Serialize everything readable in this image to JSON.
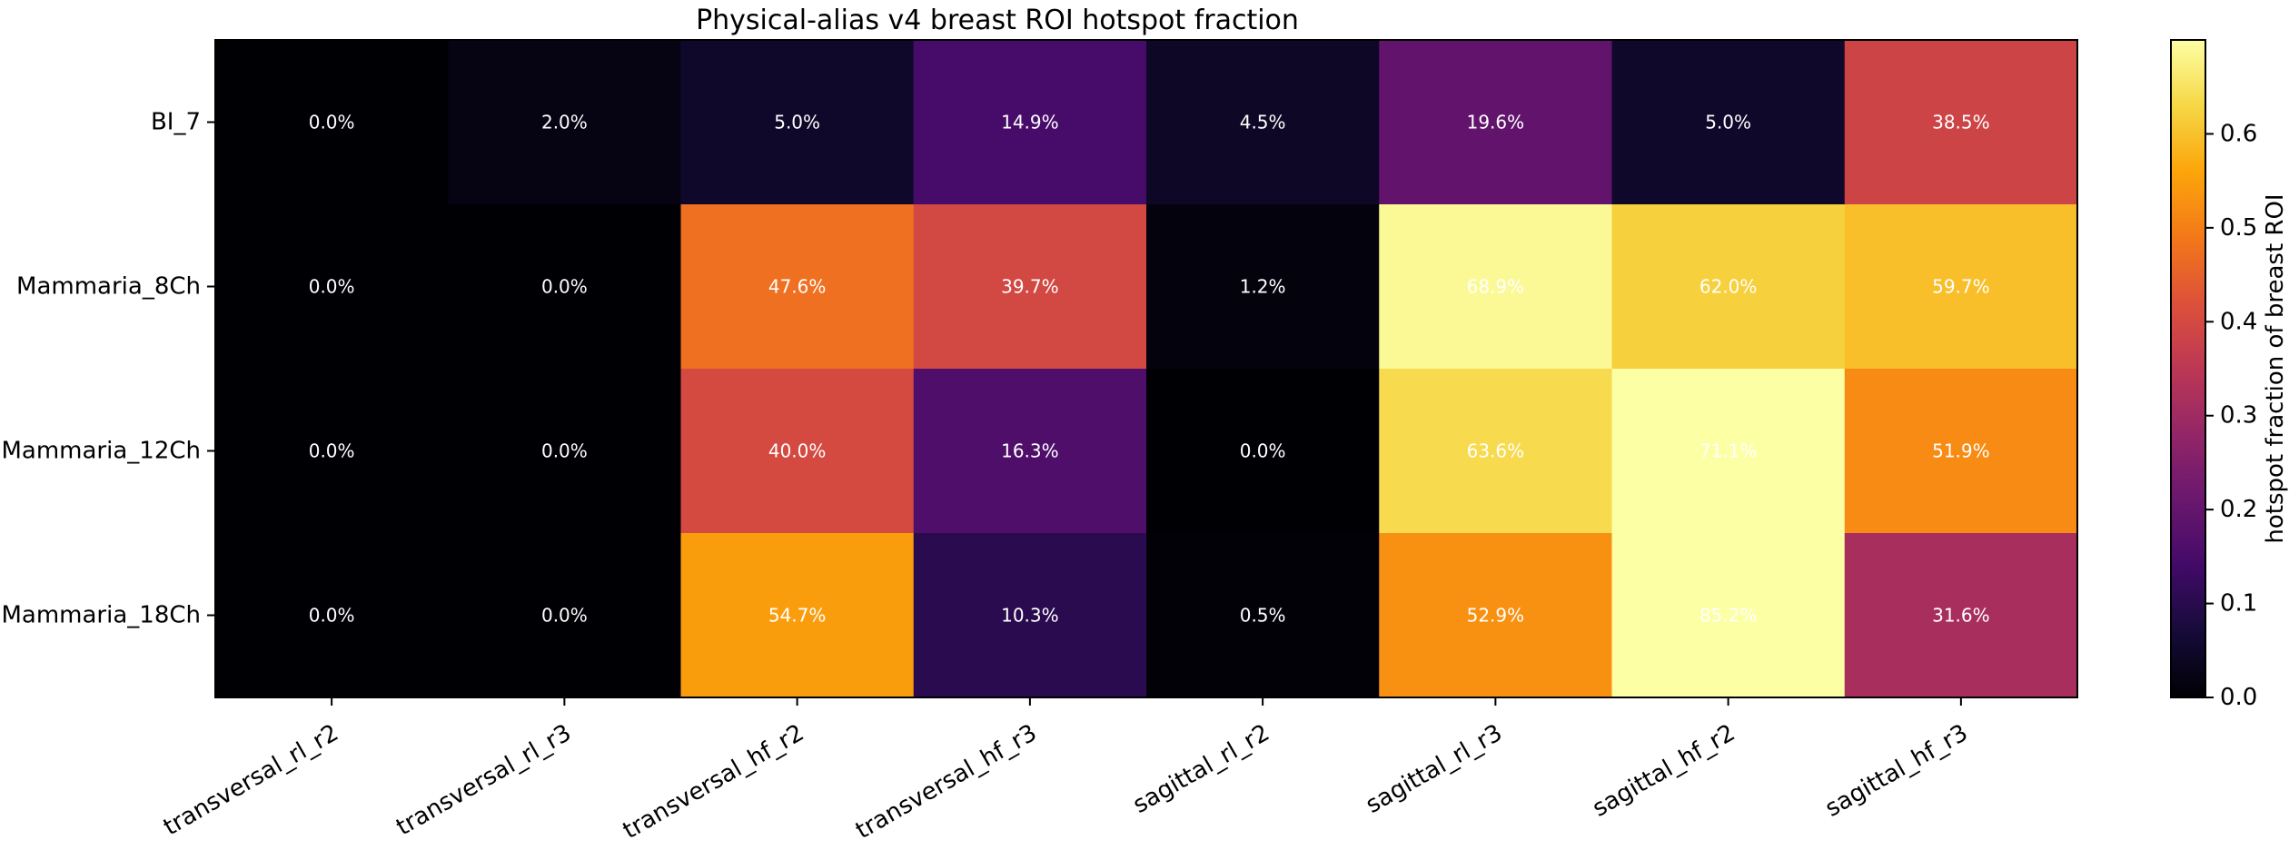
{
  "chart_data": {
    "type": "heatmap",
    "title": "Physical-alias v4 breast ROI hotspot fraction",
    "colormap": "inferno",
    "rows": [
      "BI_7",
      "Mammaria_8Ch",
      "Mammaria_12Ch",
      "Mammaria_18Ch"
    ],
    "columns": [
      "transversal_rl_r2",
      "transversal_rl_r3",
      "transversal_hf_r2",
      "transversal_hf_r3",
      "sagittal_rl_r2",
      "sagittal_rl_r3",
      "sagittal_hf_r2",
      "sagittal_hf_r3"
    ],
    "values": [
      [
        0.0,
        0.02,
        0.05,
        0.149,
        0.045,
        0.196,
        0.05,
        0.385
      ],
      [
        0.0,
        0.0,
        0.476,
        0.397,
        0.012,
        0.689,
        0.62,
        0.597
      ],
      [
        0.0,
        0.0,
        0.4,
        0.163,
        0.0,
        0.636,
        0.711,
        0.519
      ],
      [
        0.0,
        0.0,
        0.547,
        0.103,
        0.005,
        0.529,
        0.852,
        0.316
      ]
    ],
    "cell_labels": [
      [
        "0.0%",
        "2.0%",
        "5.0%",
        "14.9%",
        "4.5%",
        "19.6%",
        "5.0%",
        "38.5%"
      ],
      [
        "0.0%",
        "0.0%",
        "47.6%",
        "39.7%",
        "1.2%",
        "68.9%",
        "62.0%",
        "59.7%"
      ],
      [
        "0.0%",
        "0.0%",
        "40.0%",
        "16.3%",
        "0.0%",
        "63.6%",
        "71.1%",
        "51.9%"
      ],
      [
        "0.0%",
        "0.0%",
        "54.7%",
        "10.3%",
        "0.5%",
        "52.9%",
        "85.2%",
        "31.6%"
      ]
    ],
    "colorbar": {
      "label": "hotspot fraction of breast ROI",
      "range": [
        0,
        0.7
      ],
      "ticks": [
        0.0,
        0.1,
        0.2,
        0.3,
        0.4,
        0.5,
        0.6
      ],
      "tick_labels": [
        "0.0",
        "0.1",
        "0.2",
        "0.3",
        "0.4",
        "0.5",
        "0.6"
      ]
    }
  }
}
